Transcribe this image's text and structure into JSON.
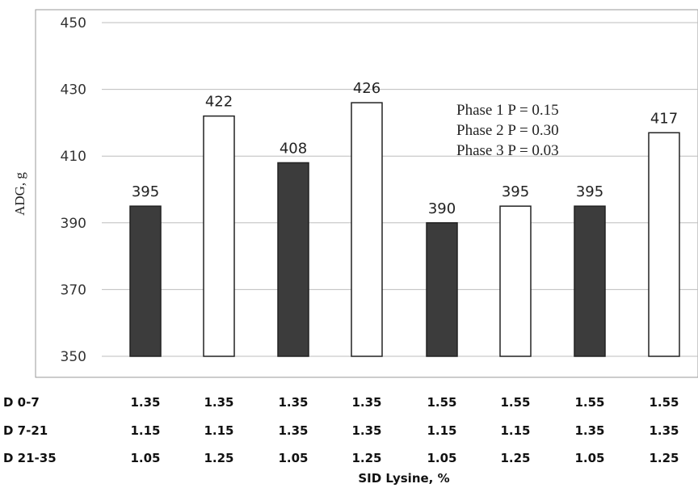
{
  "chart_data": {
    "type": "bar",
    "ylabel": "ADG, g",
    "xlabel": "SID Lysine, %",
    "ylim": [
      350,
      450
    ],
    "yticks": [
      350,
      370,
      390,
      410,
      430,
      450
    ],
    "grid": true,
    "values": [
      395,
      422,
      408,
      426,
      390,
      395,
      395,
      417
    ],
    "bar_styles": [
      "dark",
      "white",
      "dark",
      "white",
      "dark",
      "white",
      "dark",
      "white"
    ],
    "colors": {
      "dark": "#3c3c3c",
      "white": "#ffffff",
      "outline": "#222222",
      "grid": "#bdbdbd"
    },
    "rows": [
      {
        "label": "D 0-7",
        "values": [
          "1.35",
          "1.35",
          "1.35",
          "1.35",
          "1.55",
          "1.55",
          "1.55",
          "1.55"
        ]
      },
      {
        "label": "D 7-21",
        "values": [
          "1.15",
          "1.15",
          "1.35",
          "1.35",
          "1.15",
          "1.15",
          "1.35",
          "1.35"
        ]
      },
      {
        "label": "D 21-35",
        "values": [
          "1.05",
          "1.25",
          "1.05",
          "1.25",
          "1.05",
          "1.25",
          "1.05",
          "1.25"
        ]
      }
    ],
    "annotations": [
      "Phase 1 P = 0.15",
      "Phase 2 P = 0.30",
      "Phase 3 P = 0.03"
    ]
  }
}
